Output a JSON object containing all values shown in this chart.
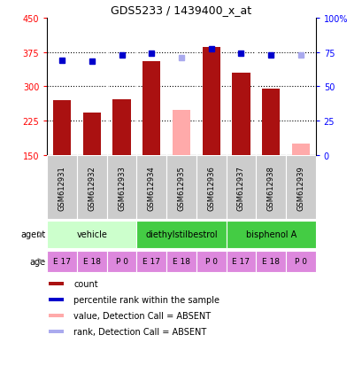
{
  "title": "GDS5233 / 1439400_x_at",
  "samples": [
    "GSM612931",
    "GSM612932",
    "GSM612933",
    "GSM612934",
    "GSM612935",
    "GSM612936",
    "GSM612937",
    "GSM612938",
    "GSM612939"
  ],
  "bar_values": [
    270,
    242,
    272,
    355,
    null,
    385,
    330,
    295,
    null
  ],
  "bar_absent_values": [
    null,
    null,
    null,
    null,
    248,
    null,
    null,
    null,
    175
  ],
  "bar_color_present": "#aa1111",
  "bar_color_absent": "#ffaaaa",
  "rank_values": [
    69,
    68,
    73,
    74,
    71,
    77,
    74,
    73,
    73
  ],
  "rank_absent": [
    false,
    false,
    false,
    false,
    true,
    false,
    false,
    false,
    true
  ],
  "rank_color_present": "#0000cc",
  "rank_color_absent": "#aaaaee",
  "ylim_left": [
    150,
    450
  ],
  "ylim_right": [
    0,
    100
  ],
  "yticks_left": [
    150,
    225,
    300,
    375,
    450
  ],
  "yticks_right": [
    0,
    25,
    50,
    75,
    100
  ],
  "ytick_labels_left": [
    "150",
    "225",
    "300",
    "375",
    "450"
  ],
  "ytick_labels_right": [
    "0",
    "25",
    "50",
    "75",
    "100%"
  ],
  "hlines": [
    225,
    300,
    375
  ],
  "agent_groups": [
    {
      "label": "vehicle",
      "start": 0,
      "end": 3,
      "color": "#ccffcc"
    },
    {
      "label": "diethylstilbestrol",
      "start": 3,
      "end": 6,
      "color": "#44cc44"
    },
    {
      "label": "bisphenol A",
      "start": 6,
      "end": 9,
      "color": "#44cc44"
    }
  ],
  "age_labels": [
    "E 17",
    "E 18",
    "P 0",
    "E 17",
    "E 18",
    "P 0",
    "E 17",
    "E 18",
    "P 0"
  ],
  "age_color": "#dd88dd",
  "sample_bg_color": "#cccccc",
  "legend_items": [
    {
      "label": "count",
      "color": "#aa1111"
    },
    {
      "label": "percentile rank within the sample",
      "color": "#0000cc"
    },
    {
      "label": "value, Detection Call = ABSENT",
      "color": "#ffaaaa"
    },
    {
      "label": "rank, Detection Call = ABSENT",
      "color": "#aaaaee"
    }
  ]
}
